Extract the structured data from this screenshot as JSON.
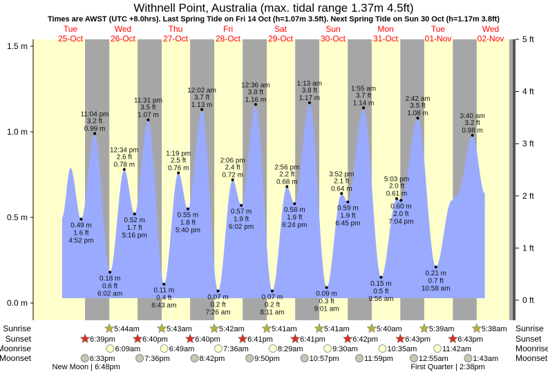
{
  "title": "Withnell Point, Australia (max. tidal range 1.37m 4.5ft)",
  "subtitle": "Times are AWST (UTC +8.0hrs). Last Spring Tide on Fri 14 Oct (h=1.07m 3.5ft). Next Spring Tide on Sun 30 Oct (h=1.17m 3.8ft)",
  "colors": {
    "day": "#ffffcc",
    "night": "#a6a6a6",
    "tide": "#99aaff",
    "label": "#ff0000"
  },
  "days": [
    {
      "dow": "Tue",
      "date": "25-Oct"
    },
    {
      "dow": "Wed",
      "date": "26-Oct"
    },
    {
      "dow": "Thu",
      "date": "27-Oct"
    },
    {
      "dow": "Fri",
      "date": "28-Oct"
    },
    {
      "dow": "Sat",
      "date": "29-Oct"
    },
    {
      "dow": "Sun",
      "date": "30-Oct"
    },
    {
      "dow": "Mon",
      "date": "31-Oct"
    },
    {
      "dow": "Tue",
      "date": "01-Nov"
    },
    {
      "dow": "Wed",
      "date": "02-Nov"
    }
  ],
  "chart_data": {
    "type": "area",
    "title": "Withnell Point, Australia (max. tidal range 1.37m 4.5ft)",
    "ylabel_left": "m",
    "ylabel_right": "ft",
    "ylim_m": [
      0,
      1.5
    ],
    "ylim_ft": [
      0,
      5
    ],
    "yticks_m": [
      "0.0 m",
      "0.5 m",
      "1.0 m",
      "1.5 m"
    ],
    "yticks_ft": [
      "0 ft",
      "1 ft",
      "2 ft",
      "3 ft",
      "4 ft",
      "5 ft"
    ],
    "unlabeled_points": [
      {
        "day": 0,
        "time": "8:10 am",
        "m": 0.5
      },
      {
        "day": 0,
        "time": "12:00 pm",
        "m": 0.79
      },
      {
        "day": 7,
        "time": "6:15 pm",
        "m": 0.6
      },
      {
        "day": 7,
        "time": "8:40 pm",
        "m": 0.63
      },
      {
        "day": 8,
        "time": "9:20 am",
        "m": 0.64
      }
    ],
    "extremes": [
      {
        "day": 0,
        "time": "4:52 pm",
        "m": "0.49 m",
        "ft": "1.6 ft",
        "h": 0.49,
        "type": "low"
      },
      {
        "day": 0,
        "time": "11:04 pm",
        "m": "0.99 m",
        "ft": "3.2 ft",
        "h": 0.99,
        "type": "high"
      },
      {
        "day": 1,
        "time": "6:02 am",
        "m": "0.18 m",
        "ft": "0.6 ft",
        "h": 0.18,
        "type": "low"
      },
      {
        "day": 1,
        "time": "12:34 pm",
        "m": "0.78 m",
        "ft": "2.6 ft",
        "h": 0.78,
        "type": "high"
      },
      {
        "day": 1,
        "time": "5:16 pm",
        "m": "0.52 m",
        "ft": "1.7 ft",
        "h": 0.52,
        "type": "low"
      },
      {
        "day": 1,
        "time": "11:31 pm",
        "m": "1.07 m",
        "ft": "3.5 ft",
        "h": 1.07,
        "type": "high"
      },
      {
        "day": 2,
        "time": "6:43 am",
        "m": "0.11 m",
        "ft": "0.4 ft",
        "h": 0.11,
        "type": "low"
      },
      {
        "day": 2,
        "time": "1:19 pm",
        "m": "0.76 m",
        "ft": "2.5 ft",
        "h": 0.76,
        "type": "high"
      },
      {
        "day": 2,
        "time": "5:40 pm",
        "m": "0.55 m",
        "ft": "1.8 ft",
        "h": 0.55,
        "type": "low"
      },
      {
        "day": 3,
        "time": "12:02 am",
        "m": "1.13 m",
        "ft": "3.7 ft",
        "h": 1.13,
        "type": "high"
      },
      {
        "day": 3,
        "time": "7:26 am",
        "m": "0.07 m",
        "ft": "0.2 ft",
        "h": 0.07,
        "type": "low"
      },
      {
        "day": 3,
        "time": "2:06 pm",
        "m": "0.72 m",
        "ft": "2.4 ft",
        "h": 0.72,
        "type": "high"
      },
      {
        "day": 3,
        "time": "6:02 pm",
        "m": "0.57 m",
        "ft": "1.9 ft",
        "h": 0.57,
        "type": "low"
      },
      {
        "day": 4,
        "time": "12:36 am",
        "m": "1.16 m",
        "ft": "3.8 ft",
        "h": 1.16,
        "type": "high"
      },
      {
        "day": 4,
        "time": "8:11 am",
        "m": "0.07 m",
        "ft": "0.2 ft",
        "h": 0.07,
        "type": "low"
      },
      {
        "day": 4,
        "time": "2:56 pm",
        "m": "0.68 m",
        "ft": "2.2 ft",
        "h": 0.68,
        "type": "high"
      },
      {
        "day": 4,
        "time": "6:24 pm",
        "m": "0.58 m",
        "ft": "1.9 ft",
        "h": 0.58,
        "type": "low"
      },
      {
        "day": 5,
        "time": "1:13 am",
        "m": "1.17 m",
        "ft": "3.8 ft",
        "h": 1.17,
        "type": "high"
      },
      {
        "day": 5,
        "time": "9:01 am",
        "m": "0.09 m",
        "ft": "0.3 ft",
        "h": 0.09,
        "type": "low"
      },
      {
        "day": 5,
        "time": "3:52 pm",
        "m": "0.64 m",
        "ft": "2.1 ft",
        "h": 0.64,
        "type": "high"
      },
      {
        "day": 5,
        "time": "6:45 pm",
        "m": "0.59 m",
        "ft": "1.9 ft",
        "h": 0.59,
        "type": "low"
      },
      {
        "day": 6,
        "time": "1:55 am",
        "m": "1.14 m",
        "ft": "3.7 ft",
        "h": 1.14,
        "type": "high"
      },
      {
        "day": 6,
        "time": "9:56 am",
        "m": "0.15 m",
        "ft": "0.5 ft",
        "h": 0.15,
        "type": "low"
      },
      {
        "day": 6,
        "time": "5:03 pm",
        "m": "0.61 m",
        "ft": "2.0 ft",
        "h": 0.61,
        "type": "high"
      },
      {
        "day": 6,
        "time": "7:04 pm",
        "m": "0.60 m",
        "ft": "2.0 ft",
        "h": 0.6,
        "type": "low"
      },
      {
        "day": 7,
        "time": "2:42 am",
        "m": "1.08 m",
        "ft": "3.5 ft",
        "h": 1.08,
        "type": "high"
      },
      {
        "day": 7,
        "time": "10:58 am",
        "m": "0.21 m",
        "ft": "0.7 ft",
        "h": 0.21,
        "type": "low"
      },
      {
        "day": 8,
        "time": "3:40 am",
        "m": "0.98 m",
        "ft": "3.2 ft",
        "h": 0.98,
        "type": "high"
      }
    ]
  },
  "rows": {
    "sunrise": {
      "label": "Sunrise",
      "items": [
        {
          "day": 1,
          "time": "5:44am"
        },
        {
          "day": 2,
          "time": "5:43am"
        },
        {
          "day": 3,
          "time": "5:42am"
        },
        {
          "day": 4,
          "time": "5:41am"
        },
        {
          "day": 5,
          "time": "5:41am"
        },
        {
          "day": 6,
          "time": "5:40am"
        },
        {
          "day": 7,
          "time": "5:39am"
        },
        {
          "day": 8,
          "time": "5:38am"
        }
      ]
    },
    "sunset": {
      "label": "Sunset",
      "items": [
        {
          "day": 0,
          "time": "6:39pm"
        },
        {
          "day": 1,
          "time": "6:40pm"
        },
        {
          "day": 2,
          "time": "6:40pm"
        },
        {
          "day": 3,
          "time": "6:41pm"
        },
        {
          "day": 4,
          "time": "6:41pm"
        },
        {
          "day": 5,
          "time": "6:42pm"
        },
        {
          "day": 6,
          "time": "6:43pm"
        },
        {
          "day": 7,
          "time": "6:43pm"
        }
      ]
    },
    "moonrise": {
      "label": "Moonrise",
      "items": [
        {
          "day": 1,
          "time": "6:09am"
        },
        {
          "day": 2,
          "time": "6:49am"
        },
        {
          "day": 3,
          "time": "7:36am"
        },
        {
          "day": 4,
          "time": "8:29am"
        },
        {
          "day": 5,
          "time": "9:30am"
        },
        {
          "day": 6,
          "time": "10:35am"
        },
        {
          "day": 7,
          "time": "11:42am"
        }
      ]
    },
    "moonset": {
      "label": "Moonset",
      "items": [
        {
          "day": 0,
          "time": "6:33pm"
        },
        {
          "day": 1,
          "time": "7:36pm"
        },
        {
          "day": 2,
          "time": "8:42pm"
        },
        {
          "day": 3,
          "time": "9:50pm"
        },
        {
          "day": 4,
          "time": "10:57pm"
        },
        {
          "day": 5,
          "time": "11:59pm"
        },
        {
          "day": 7,
          "time": "12:55am"
        },
        {
          "day": 8,
          "time": "1:43am"
        }
      ]
    }
  },
  "moon_phases": [
    {
      "label": "New Moon | 6:48pm",
      "day": 0,
      "time": "6:48pm"
    },
    {
      "label": "First Quarter | 2:38pm",
      "day": 7,
      "time": "2:38pm"
    }
  ]
}
